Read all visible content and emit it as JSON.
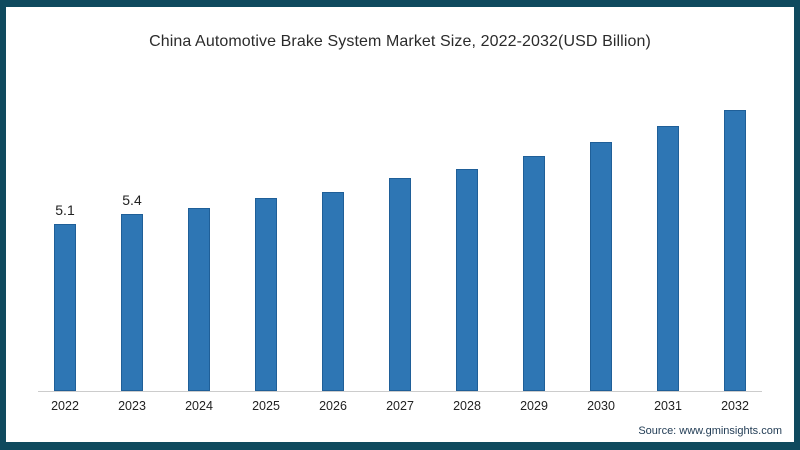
{
  "chart_data": {
    "type": "bar",
    "title": "China Automotive Brake System Market Size, 2022-2032(USD Billion)",
    "categories": [
      "2022",
      "2023",
      "2024",
      "2025",
      "2026",
      "2027",
      "2028",
      "2029",
      "2030",
      "2031",
      "2032"
    ],
    "values": [
      5.1,
      5.4,
      5.6,
      5.9,
      6.1,
      6.5,
      6.8,
      7.2,
      7.6,
      8.1,
      8.6
    ],
    "data_labels": [
      "5.1",
      "5.4",
      "",
      "",
      "",
      "",
      "",
      "",
      "",
      "",
      ""
    ],
    "xlabel": "",
    "ylabel": "",
    "unit": "USD Billion",
    "ylim": [
      0,
      9
    ],
    "grid": false,
    "legend": "none",
    "bar_color": "#2e76b4",
    "bar_border_color": "#1f5f98",
    "frame_color": "#0f4a5e",
    "source": "Source: www.gminsights.com"
  }
}
